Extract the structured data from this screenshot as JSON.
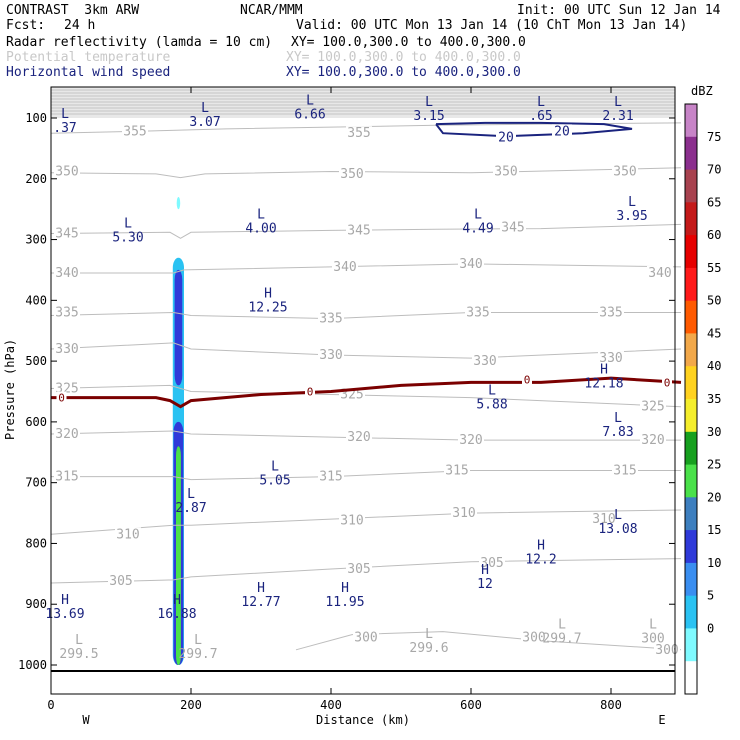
{
  "header": {
    "experiment": "CONTRAST  3km ARW",
    "producer": "NCAR/MMM",
    "init": "Init: 00 UTC Sun 12 Jan 14",
    "fcst_label": "Fcst:",
    "fcst_value": "24 h",
    "valid": "Valid: 00 UTC Mon 13 Jan 14 (10 ChT Mon 13 Jan 14)",
    "field1": "Radar reflectivity (lamda = 10 cm)",
    "field1_xy": "XY= 100.0,300.0 to 400.0,300.0",
    "field2": "Potential temperature",
    "field2_xy": "XY= 100.0,300.0 to 400.0,300.0",
    "field3": "Horizontal wind speed",
    "field3_xy": "XY= 100.0,300.0 to 400.0,300.0"
  },
  "colors": {
    "theta": "#bdbdbd",
    "freezing": "#7b0000",
    "wind": "#1a237e",
    "frame": "#000000"
  },
  "chart_data": {
    "type": "cross-section",
    "title": "Radar reflectivity, potential temperature and horizontal wind speed",
    "xlabel": "Distance (km)",
    "ylabel": "Pressure (hPa)",
    "xlim": [
      0,
      900
    ],
    "ylim": [
      50,
      1010
    ],
    "x_ticks": [
      0,
      200,
      400,
      600,
      800
    ],
    "x_tick_labels": [
      "0",
      "200",
      "400",
      "600",
      "800"
    ],
    "y_ticks": [
      100,
      200,
      300,
      400,
      500,
      600,
      700,
      800,
      900,
      1000
    ],
    "y_tick_labels": [
      "100",
      "200",
      "300",
      "400",
      "500",
      "600",
      "700",
      "800",
      "900",
      "1000"
    ],
    "west_label": "W",
    "east_label": "E",
    "colorbar": {
      "unit": "dBZ",
      "levels": [
        "75",
        "70",
        "65",
        "60",
        "55",
        "50",
        "45",
        "40",
        "35",
        "30",
        "25",
        "20",
        "15",
        "10",
        "5",
        "0"
      ],
      "colors": [
        "#c784c7",
        "#8b2f8e",
        "#a8424f",
        "#c41a1a",
        "#e60000",
        "#ff1a1a",
        "#ff5a00",
        "#f2a84a",
        "#ffd21f",
        "#f5ee2c",
        "#17a01f",
        "#4ae14a",
        "#3d7fbf",
        "#2f3ad9",
        "#3a8ef0",
        "#2ac2f2",
        "#7ffaff",
        "#ffffff"
      ]
    },
    "theta_contours": [
      {
        "value": "355",
        "p": [
          [
            0,
            125
          ],
          [
            120,
            122
          ],
          [
            250,
            118
          ],
          [
            400,
            115
          ],
          [
            550,
            112
          ],
          [
            700,
            110
          ],
          [
            900,
            108
          ]
        ],
        "labels": [
          [
            120,
            122
          ],
          [
            440,
            125
          ]
        ]
      },
      {
        "value": "350",
        "p": [
          [
            0,
            190
          ],
          [
            150,
            192
          ],
          [
            185,
            198
          ],
          [
            220,
            192
          ],
          [
            400,
            188
          ],
          [
            600,
            190
          ],
          [
            900,
            182
          ]
        ],
        "labels": [
          [
            0,
            188
          ],
          [
            430,
            192
          ],
          [
            650,
            188
          ],
          [
            820,
            188
          ]
        ]
      },
      {
        "value": "345",
        "p": [
          [
            0,
            290
          ],
          [
            170,
            288
          ],
          [
            185,
            298
          ],
          [
            200,
            288
          ],
          [
            400,
            285
          ],
          [
            550,
            283
          ],
          [
            700,
            282
          ],
          [
            900,
            275
          ]
        ],
        "labels": [
          [
            0,
            290
          ],
          [
            440,
            285
          ],
          [
            660,
            280
          ]
        ]
      },
      {
        "value": "340",
        "p": [
          [
            0,
            355
          ],
          [
            175,
            355
          ],
          [
            190,
            350
          ],
          [
            400,
            345
          ],
          [
            600,
            340
          ],
          [
            900,
            345
          ]
        ],
        "labels": [
          [
            0,
            355
          ],
          [
            420,
            345
          ],
          [
            600,
            340
          ],
          [
            870,
            355
          ]
        ]
      },
      {
        "value": "335",
        "p": [
          [
            0,
            425
          ],
          [
            175,
            420
          ],
          [
            200,
            425
          ],
          [
            400,
            430
          ],
          [
            600,
            420
          ],
          [
            900,
            420
          ]
        ],
        "labels": [
          [
            0,
            420
          ],
          [
            400,
            430
          ],
          [
            610,
            420
          ],
          [
            800,
            420
          ]
        ]
      },
      {
        "value": "330",
        "p": [
          [
            0,
            480
          ],
          [
            175,
            470
          ],
          [
            200,
            480
          ],
          [
            400,
            490
          ],
          [
            600,
            495
          ],
          [
            900,
            480
          ]
        ],
        "labels": [
          [
            0,
            480
          ],
          [
            400,
            490
          ],
          [
            620,
            500
          ],
          [
            800,
            495
          ]
        ]
      },
      {
        "value": "325",
        "p": [
          [
            0,
            545
          ],
          [
            170,
            540
          ],
          [
            200,
            550
          ],
          [
            400,
            555
          ],
          [
            600,
            560
          ],
          [
            900,
            575
          ]
        ],
        "labels": [
          [
            0,
            545
          ],
          [
            430,
            555
          ],
          [
            860,
            575
          ]
        ]
      },
      {
        "value": "320",
        "p": [
          [
            0,
            620
          ],
          [
            175,
            615
          ],
          [
            200,
            620
          ],
          [
            400,
            625
          ],
          [
            600,
            630
          ],
          [
            900,
            630
          ]
        ],
        "labels": [
          [
            0,
            620
          ],
          [
            440,
            625
          ],
          [
            600,
            630
          ],
          [
            860,
            630
          ]
        ]
      },
      {
        "value": "315",
        "p": [
          [
            0,
            690
          ],
          [
            175,
            690
          ],
          [
            200,
            695
          ],
          [
            400,
            690
          ],
          [
            600,
            680
          ],
          [
            900,
            680
          ]
        ],
        "labels": [
          [
            0,
            690
          ],
          [
            400,
            690
          ],
          [
            580,
            680
          ],
          [
            820,
            680
          ]
        ]
      },
      {
        "value": "310",
        "p": [
          [
            0,
            785
          ],
          [
            175,
            770
          ],
          [
            200,
            770
          ],
          [
            400,
            760
          ],
          [
            600,
            750
          ],
          [
            900,
            745
          ]
        ],
        "labels": [
          [
            110,
            785
          ],
          [
            430,
            762
          ],
          [
            590,
            750
          ],
          [
            790,
            760
          ]
        ]
      },
      {
        "value": "305",
        "p": [
          [
            0,
            865
          ],
          [
            175,
            860
          ],
          [
            200,
            855
          ],
          [
            400,
            842
          ],
          [
            600,
            830
          ],
          [
            900,
            825
          ]
        ],
        "labels": [
          [
            100,
            862
          ],
          [
            440,
            842
          ],
          [
            630,
            832
          ]
        ]
      },
      {
        "value": "300",
        "p": [
          [
            350,
            975
          ],
          [
            430,
            950
          ],
          [
            560,
            945
          ],
          [
            700,
            960
          ],
          [
            900,
            975
          ]
        ],
        "labels": [
          [
            450,
            955
          ],
          [
            690,
            955
          ],
          [
            880,
            975
          ]
        ]
      }
    ],
    "theta_extrema": [
      {
        "type": "L",
        "x": 40,
        "p": 985,
        "value": "299.5"
      },
      {
        "type": "L",
        "x": 210,
        "p": 985,
        "value": "299.7"
      },
      {
        "type": "L",
        "x": 540,
        "p": 975,
        "value": "299.6"
      },
      {
        "type": "L",
        "x": 730,
        "p": 960,
        "value": "299.7"
      },
      {
        "type": "L",
        "x": 860,
        "p": 960,
        "value": "300"
      }
    ],
    "freezing_level": {
      "value": "0",
      "p": [
        [
          0,
          560
        ],
        [
          150,
          560
        ],
        [
          170,
          565
        ],
        [
          185,
          575
        ],
        [
          200,
          565
        ],
        [
          300,
          555
        ],
        [
          400,
          550
        ],
        [
          500,
          540
        ],
        [
          600,
          535
        ],
        [
          700,
          535
        ],
        [
          800,
          528
        ],
        [
          900,
          535
        ]
      ],
      "labels": [
        [
          15,
          560
        ],
        [
          370,
          550
        ],
        [
          680,
          530
        ],
        [
          880,
          535
        ]
      ]
    },
    "reflectivity_column": [
      {
        "x": 182,
        "p_top": 330,
        "p_bottom": 1000,
        "width_km": 16,
        "color": "#2ac2f2"
      },
      {
        "x": 182,
        "p_top": 350,
        "p_bottom": 540,
        "width_km": 11,
        "color": "#2f3ad9"
      },
      {
        "x": 182,
        "p_top": 600,
        "p_bottom": 1000,
        "width_km": 14,
        "color": "#2f3ad9"
      },
      {
        "x": 182,
        "p_top": 640,
        "p_bottom": 1000,
        "width_km": 7,
        "color": "#4ae14a"
      },
      {
        "x": 182,
        "p_top": 230,
        "p_bottom": 250,
        "width_km": 5,
        "color": "#7ffaff"
      }
    ],
    "wind_contours": [
      {
        "value": "20",
        "p": [
          [
            550,
            110
          ],
          [
            620,
            108
          ],
          [
            700,
            108
          ],
          [
            790,
            110
          ],
          [
            830,
            118
          ],
          [
            760,
            125
          ],
          [
            650,
            130
          ],
          [
            560,
            125
          ],
          [
            550,
            110
          ]
        ],
        "labels": [
          [
            650,
            132
          ],
          [
            730,
            122
          ]
        ]
      }
    ],
    "wind_extrema": [
      {
        "type": "L",
        "x": 20,
        "p": 100,
        "value": ".37"
      },
      {
        "type": "L",
        "x": 220,
        "p": 90,
        "value": "3.07"
      },
      {
        "type": "L",
        "x": 370,
        "p": 78,
        "value": "6.66"
      },
      {
        "type": "L",
        "x": 540,
        "p": 80,
        "value": "3.15"
      },
      {
        "type": "L",
        "x": 700,
        "p": 80,
        "value": ".65"
      },
      {
        "type": "L",
        "x": 810,
        "p": 80,
        "value": "2.31"
      },
      {
        "type": "L",
        "x": 110,
        "p": 280,
        "value": "5.30"
      },
      {
        "type": "L",
        "x": 300,
        "p": 265,
        "value": "4.00"
      },
      {
        "type": "L",
        "x": 610,
        "p": 265,
        "value": "4.49"
      },
      {
        "type": "L",
        "x": 830,
        "p": 245,
        "value": "3.95"
      },
      {
        "type": "H",
        "x": 310,
        "p": 395,
        "value": "12.25"
      },
      {
        "type": "H",
        "x": 790,
        "p": 520,
        "value": "12.18"
      },
      {
        "type": "L",
        "x": 630,
        "p": 555,
        "value": "5.88"
      },
      {
        "type": "L",
        "x": 810,
        "p": 600,
        "value": "7.83"
      },
      {
        "type": "L",
        "x": 320,
        "p": 680,
        "value": "5.05"
      },
      {
        "type": "L",
        "x": 200,
        "p": 725,
        "value": "2.87"
      },
      {
        "type": "L",
        "x": 810,
        "p": 760,
        "value": "13.08"
      },
      {
        "type": "H",
        "x": 700,
        "p": 810,
        "value": "12.2"
      },
      {
        "type": "H",
        "x": 620,
        "p": 850,
        "value": "12"
      },
      {
        "type": "H",
        "x": 20,
        "p": 900,
        "value": "13.69"
      },
      {
        "type": "H",
        "x": 180,
        "p": 900,
        "value": "16.88"
      },
      {
        "type": "H",
        "x": 300,
        "p": 880,
        "value": "12.77"
      },
      {
        "type": "H",
        "x": 420,
        "p": 880,
        "value": "11.95"
      }
    ]
  }
}
